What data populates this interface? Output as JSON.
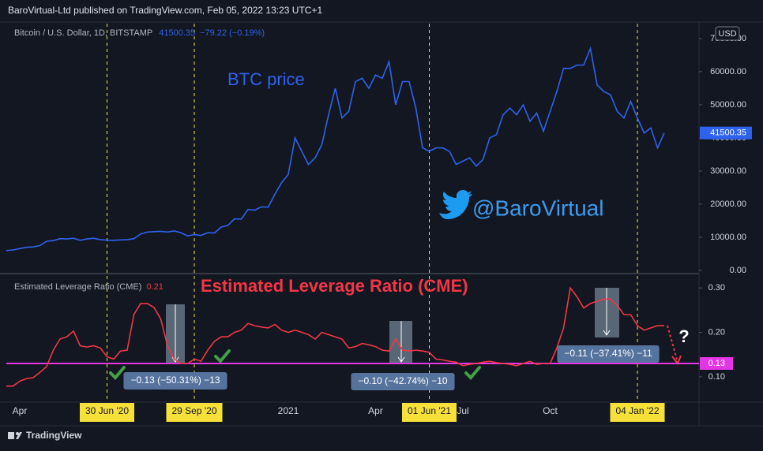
{
  "header": {
    "publisher": "BaroVirtual-Ltd published on TradingView.com, Feb 05, 2022 13:23 UTC+1"
  },
  "footer": {
    "brand": "TradingView"
  },
  "chart_data": [
    {
      "type": "line",
      "title": "Bitcoin / U.S. Dollar, 1D, BITSTAMP",
      "last_price": 41500.35,
      "change": "−79.22 (−0.19%)",
      "currency": "USD",
      "annotations": [
        "BTC price",
        "@BaroVirtual"
      ],
      "color": "#2f62ee",
      "categories": [
        null,
        null,
        "Apr",
        null,
        null,
        null,
        null,
        null,
        null,
        null,
        null,
        null,
        null,
        null,
        null,
        "30 Jun '20",
        null,
        null,
        null,
        null,
        null,
        null,
        null,
        null,
        null,
        null,
        null,
        null,
        "29 Sep '20",
        null,
        null,
        null,
        null,
        null,
        null,
        null,
        null,
        null,
        null,
        null,
        null,
        null,
        "2021",
        null,
        null,
        null,
        null,
        null,
        null,
        null,
        null,
        null,
        null,
        null,
        null,
        "Apr",
        null,
        null,
        null,
        null,
        null,
        null,
        null,
        "01 Jun '21",
        null,
        null,
        null,
        null,
        "Jul",
        null,
        null,
        null,
        null,
        null,
        null,
        null,
        null,
        null,
        null,
        null,
        null,
        "Oct",
        null,
        null,
        null,
        null,
        null,
        null,
        null,
        null,
        null,
        null,
        null,
        null,
        "04 Jan '22",
        null,
        null,
        null,
        null
      ],
      "values": [
        6000,
        6200,
        6600,
        7000,
        7100,
        7500,
        8800,
        9000,
        9600,
        9500,
        9700,
        9100,
        9500,
        9700,
        9300,
        9150,
        9100,
        9200,
        9300,
        9600,
        11000,
        11600,
        11700,
        11800,
        11600,
        11900,
        11400,
        10400,
        10800,
        10600,
        11400,
        11300,
        13100,
        13600,
        15600,
        15500,
        18400,
        18200,
        19200,
        19100,
        23000,
        26500,
        29000,
        40000,
        36000,
        32000,
        34000,
        38000,
        47000,
        55000,
        46000,
        48000,
        57000,
        58000,
        55000,
        59000,
        58000,
        63000,
        50000,
        57000,
        57000,
        49000,
        37000,
        36000,
        37000,
        37000,
        36000,
        32000,
        33000,
        34000,
        31500,
        33500,
        40000,
        41000,
        47000,
        49000,
        47000,
        50000,
        45000,
        47500,
        42000,
        48000,
        54000,
        61000,
        61000,
        62000,
        62000,
        67000,
        56000,
        54000,
        53000,
        48000,
        46000,
        51000,
        46000,
        41500,
        43000,
        37000,
        41500
      ],
      "ylim": [
        0,
        74500
      ],
      "yticks": [
        {
          "value": 0,
          "label": "0.00"
        },
        {
          "value": 10000,
          "label": "10000.00"
        },
        {
          "value": 20000,
          "label": "20000.00"
        },
        {
          "value": 30000,
          "label": "30000.00"
        },
        {
          "value": 40000,
          "label": "40000.00"
        },
        {
          "value": 50000,
          "label": "50000.00"
        },
        {
          "value": 60000,
          "label": "60000.00"
        },
        {
          "value": 70000,
          "label": "70000.00"
        }
      ]
    },
    {
      "type": "line",
      "title": "Estimated Leverage Ratio (CME)",
      "last_value": 0.21,
      "color": "#f23645",
      "annotations": [
        "Estimated Leverage Ratio (CME)",
        "?"
      ],
      "measures": [
        "−0.13 (−50.31%) −13",
        "−0.10 (−42.74%) −10",
        "−0.11 (−37.41%) −11"
      ],
      "hline": {
        "value": 0.13,
        "color": "#e536e5"
      },
      "values": [
        0.079,
        0.079,
        0.09,
        0.096,
        0.098,
        0.11,
        0.123,
        0.16,
        0.185,
        0.19,
        0.203,
        0.17,
        0.167,
        0.17,
        0.165,
        0.145,
        0.14,
        0.158,
        0.16,
        0.24,
        0.265,
        0.265,
        0.256,
        0.23,
        0.17,
        0.14,
        0.13,
        0.13,
        0.14,
        0.135,
        0.16,
        0.18,
        0.19,
        0.19,
        0.2,
        0.205,
        0.22,
        0.215,
        0.212,
        0.21,
        0.218,
        0.205,
        0.2,
        0.205,
        0.2,
        0.195,
        0.185,
        0.2,
        0.195,
        0.19,
        0.185,
        0.165,
        0.168,
        0.175,
        0.172,
        0.168,
        0.16,
        0.158,
        0.185,
        0.16,
        0.158,
        0.16,
        0.158,
        0.155,
        0.14,
        0.138,
        0.135,
        0.133,
        0.125,
        0.128,
        0.13,
        0.133,
        0.135,
        0.132,
        0.13,
        0.128,
        0.125,
        0.13,
        0.135,
        0.128,
        0.13,
        0.13,
        0.165,
        0.21,
        0.3,
        0.28,
        0.255,
        0.265,
        0.27,
        0.275,
        0.275,
        0.26,
        0.24,
        0.24,
        0.215,
        0.205,
        0.21,
        0.215,
        0.215
      ],
      "ylim": [
        0.043,
        0.327
      ],
      "yticks": [
        {
          "value": 0.1,
          "label": "0.10"
        },
        {
          "value": 0.2,
          "label": "0.20"
        },
        {
          "value": 0.3,
          "label": "0.30"
        }
      ]
    }
  ]
}
